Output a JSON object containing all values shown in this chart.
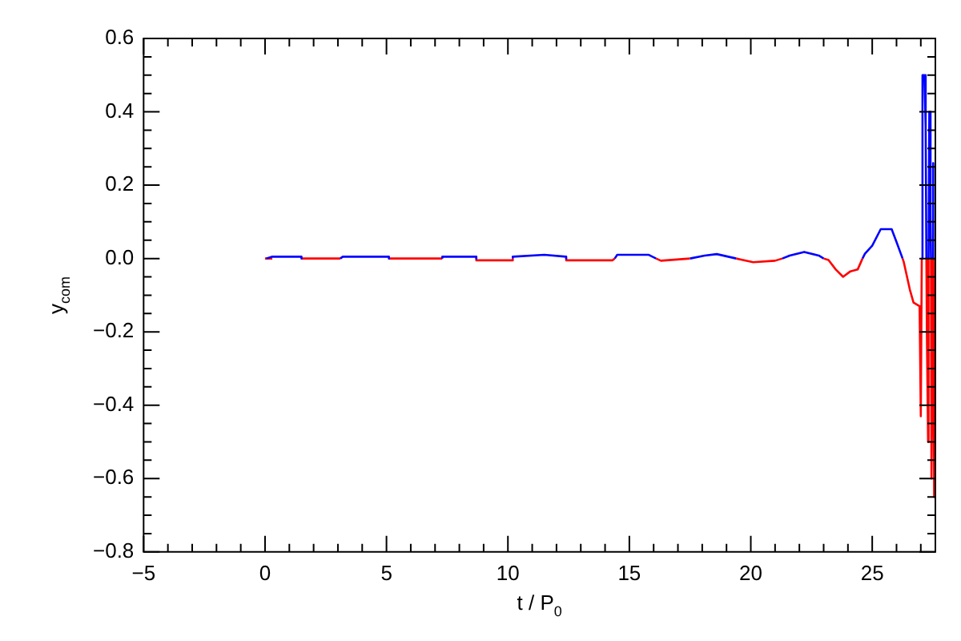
{
  "chart_data": {
    "type": "line",
    "xlabel": "t / P$_{0}$",
    "ylabel": "y$_{com}$",
    "xlim": [
      -5,
      27.6
    ],
    "ylim": [
      -0.8,
      0.6
    ],
    "xticks": [
      {
        "value": -5,
        "label": "−5"
      },
      {
        "value": -4,
        "label": null
      },
      {
        "value": -3,
        "label": null
      },
      {
        "value": -2,
        "label": null
      },
      {
        "value": -1,
        "label": null
      },
      0,
      {
        "value": 1,
        "label": null
      },
      {
        "value": 2,
        "label": null
      },
      {
        "value": 3,
        "label": null
      },
      {
        "value": 4,
        "label": null
      },
      5,
      {
        "value": 6,
        "label": null
      },
      {
        "value": 7,
        "label": null
      },
      {
        "value": 8,
        "label": null
      },
      {
        "value": 9,
        "label": null
      },
      10,
      {
        "value": 11,
        "label": null
      },
      {
        "value": 12,
        "label": null
      },
      {
        "value": 13,
        "label": null
      },
      {
        "value": 14,
        "label": null
      },
      15,
      {
        "value": 16,
        "label": null
      },
      {
        "value": 17,
        "label": null
      },
      {
        "value": 18,
        "label": null
      },
      {
        "value": 19,
        "label": null
      },
      20,
      {
        "value": 21,
        "label": null
      },
      {
        "value": 22,
        "label": null
      },
      {
        "value": 23,
        "label": null
      },
      {
        "value": 24,
        "label": null
      },
      25,
      {
        "value": 26,
        "label": null
      },
      {
        "value": 27,
        "label": null
      }
    ],
    "yticks": [
      {
        "value": -0.8,
        "label": "−0.8"
      },
      {
        "value": -0.75,
        "label": null
      },
      {
        "value": -0.7,
        "label": null
      },
      {
        "value": -0.65,
        "label": null
      },
      {
        "value": -0.6,
        "label": "−0.6"
      },
      {
        "value": -0.55,
        "label": null
      },
      {
        "value": -0.5,
        "label": null
      },
      {
        "value": -0.45,
        "label": null
      },
      {
        "value": -0.4,
        "label": "−0.4"
      },
      {
        "value": -0.35,
        "label": null
      },
      {
        "value": -0.3,
        "label": null
      },
      {
        "value": -0.25,
        "label": null
      },
      {
        "value": -0.2,
        "label": "−0.2"
      },
      {
        "value": -0.15,
        "label": null
      },
      {
        "value": -0.1,
        "label": null
      },
      {
        "value": -0.05,
        "label": null
      },
      {
        "value": 0,
        "label": "0.0"
      },
      {
        "value": 0.05,
        "label": null
      },
      {
        "value": 0.1,
        "label": null
      },
      {
        "value": 0.15,
        "label": null
      },
      {
        "value": 0.2,
        "label": "0.2"
      },
      {
        "value": 0.25,
        "label": null
      },
      {
        "value": 0.3,
        "label": null
      },
      {
        "value": 0.35,
        "label": null
      },
      {
        "value": 0.4,
        "label": "0.4"
      },
      {
        "value": 0.45,
        "label": null
      },
      {
        "value": 0.5,
        "label": null
      },
      {
        "value": 0.55,
        "label": null
      },
      {
        "value": 0.6,
        "label": "0.6"
      }
    ],
    "grid": false,
    "legend": false,
    "marker": "none",
    "line_style": "solid",
    "series": [
      {
        "color": "#0000ff",
        "x": [
          0.05,
          0.3,
          1.5,
          1.5,
          null,
          3.1,
          3.2,
          5.1,
          5.1,
          null,
          7.3,
          7.3,
          8.7,
          8.7,
          null,
          10.2,
          10.2,
          11.5,
          12.4,
          12.4,
          null,
          14.4,
          14.5,
          15.8,
          16.1,
          null,
          17.5,
          18.1,
          18.6,
          19.4,
          null,
          21.3,
          21.6,
          22.2,
          22.8,
          23.0,
          null,
          24.6,
          24.7,
          25.0,
          25.35,
          25.8,
          26.0,
          26.25,
          null,
          27.04,
          27.07,
          27.15,
          27.2,
          27.23,
          null,
          27.32,
          27.35,
          27.4,
          27.42,
          null,
          27.49,
          27.5,
          27.52
        ],
        "values": [
          0,
          0.005,
          0.005,
          0,
          null,
          0,
          0.005,
          0.005,
          0,
          null,
          0,
          0.005,
          0.005,
          0,
          null,
          0,
          0.005,
          0.01,
          0.005,
          0,
          null,
          0,
          0.01,
          0.01,
          0,
          null,
          0,
          0.008,
          0.012,
          0,
          null,
          0,
          0.008,
          0.018,
          0.008,
          0,
          null,
          0,
          0.013,
          0.035,
          0.08,
          0.08,
          0.045,
          0,
          null,
          0,
          0.5,
          0.5,
          0.36,
          0,
          null,
          0,
          0.4,
          0.12,
          0,
          null,
          0,
          0.26,
          0
        ]
      },
      {
        "color": "#ff0000",
        "x": [
          0,
          0.3,
          null,
          1.5,
          3.1,
          null,
          5.1,
          7.3,
          null,
          8.7,
          8.7,
          10.2,
          10.2,
          null,
          12.4,
          12.4,
          14.3,
          14.4,
          null,
          16.1,
          16.3,
          17.5,
          null,
          19.4,
          19.6,
          20.1,
          21.0,
          21.3,
          null,
          23.0,
          23.2,
          23.5,
          23.8,
          24.1,
          24.4,
          24.6,
          null,
          26.25,
          26.3,
          26.55,
          26.7,
          26.95,
          27.0,
          27.04,
          null,
          27.23,
          27.25,
          27.3,
          27.32,
          null,
          27.42,
          27.44,
          27.48,
          27.49,
          null,
          27.52,
          27.55,
          27.58
        ],
        "values": [
          0,
          0,
          null,
          0,
          0,
          null,
          0,
          0,
          null,
          0,
          -0.005,
          -0.005,
          0,
          null,
          0,
          -0.005,
          -0.005,
          0,
          null,
          0,
          -0.006,
          0,
          null,
          0,
          -0.003,
          -0.01,
          -0.006,
          0,
          null,
          0,
          -0.004,
          -0.03,
          -0.05,
          -0.035,
          -0.03,
          0,
          null,
          0,
          -0.01,
          -0.085,
          -0.12,
          -0.13,
          -0.43,
          0,
          null,
          0,
          -0.2,
          -0.5,
          0,
          null,
          0,
          -0.6,
          -0.31,
          0,
          null,
          0,
          -0.65,
          -0.27
        ]
      }
    ]
  }
}
